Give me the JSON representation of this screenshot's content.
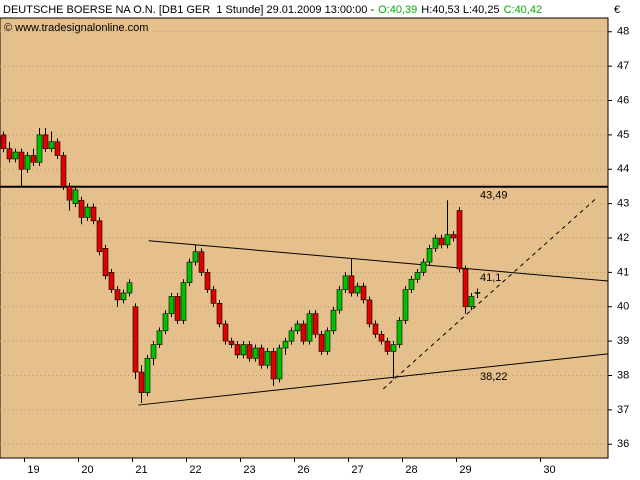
{
  "chart_data": {
    "type": "candlestick",
    "title": "DEUTSCHE BOERSE NA O.N. [DB1 GER  1 Stunde] 29.01.2009 13:00:00 -",
    "open_label": "O:40,39",
    "hl_label": "H:40,53 L:40,25",
    "close_label": "C:40,42",
    "watermark": "© www.tradesignalonline.com",
    "y_unit": "€",
    "up_color": "#00c000",
    "down_color": "#e00000",
    "grid": true,
    "ylim": [
      35.6,
      48.4
    ],
    "yticks": [
      36,
      37,
      38,
      39,
      40,
      41,
      42,
      43,
      44,
      45,
      46,
      47,
      48
    ],
    "categories": [
      null,
      null,
      null,
      null,
      null,
      "19",
      null,
      null,
      null,
      null,
      null,
      null,
      null,
      null,
      "20",
      null,
      null,
      null,
      null,
      null,
      null,
      null,
      null,
      "21",
      null,
      null,
      null,
      null,
      null,
      null,
      null,
      null,
      "22",
      null,
      null,
      null,
      null,
      null,
      null,
      null,
      null,
      "23",
      null,
      null,
      null,
      null,
      null,
      null,
      null,
      null,
      "26",
      null,
      null,
      null,
      null,
      null,
      null,
      null,
      null,
      "27",
      null,
      null,
      null,
      null,
      null,
      null,
      null,
      null,
      "28",
      null,
      null,
      null,
      null,
      null,
      null,
      null,
      null,
      "29",
      null,
      null,
      null,
      null,
      null,
      null,
      null,
      null,
      null,
      null,
      null,
      null,
      null,
      "30",
      null,
      null,
      null,
      null,
      null,
      null,
      null,
      null,
      null
    ],
    "open": [
      45.0,
      44.6,
      44.3,
      44.5,
      44.0,
      44.4,
      44.2,
      45.0,
      44.6,
      44.8,
      44.4,
      43.5,
      43.0,
      43.1,
      42.6,
      42.9,
      42.5,
      41.7,
      41.0,
      40.5,
      40.2,
      40.4,
      40.0,
      38.1,
      37.5,
      38.5,
      38.9,
      39.3,
      39.8,
      40.3,
      39.6,
      40.7,
      41.3,
      41.6,
      41.0,
      40.5,
      40.1,
      39.5,
      39.0,
      38.9,
      38.6,
      38.9,
      38.5,
      38.8,
      38.3,
      38.7,
      37.9,
      38.8,
      39.0,
      39.3,
      39.5,
      39.0,
      39.8,
      39.2,
      38.7,
      39.3,
      39.9,
      40.5,
      40.9,
      40.4,
      40.6,
      40.2,
      39.5,
      39.2,
      39.0,
      38.7,
      38.9,
      39.6,
      40.5,
      40.8,
      41.0,
      41.3,
      41.7,
      42.0,
      41.8,
      42.1,
      42.8,
      41.1,
      40.0,
      40.39,
      null,
      null,
      null,
      null,
      null,
      null,
      null,
      null,
      null,
      null,
      null,
      null,
      null,
      null,
      null,
      null,
      null,
      null,
      null,
      null,
      null
    ],
    "high": [
      45.1,
      44.8,
      44.6,
      44.6,
      44.5,
      44.6,
      45.2,
      45.2,
      45.1,
      44.9,
      44.5,
      43.6,
      43.5,
      43.2,
      43.0,
      43.0,
      42.6,
      41.8,
      41.1,
      40.6,
      40.5,
      40.8,
      40.1,
      38.3,
      38.6,
      39.0,
      39.4,
      39.9,
      40.4,
      40.4,
      40.8,
      41.4,
      41.8,
      41.7,
      41.1,
      40.6,
      40.2,
      39.6,
      39.1,
      39.0,
      39.0,
      39.0,
      38.9,
      38.9,
      38.8,
      38.8,
      38.9,
      39.1,
      39.4,
      39.6,
      39.6,
      39.9,
      39.9,
      39.3,
      39.4,
      40.0,
      40.6,
      41.0,
      41.4,
      40.7,
      40.7,
      40.3,
      39.6,
      39.3,
      39.1,
      39.0,
      39.7,
      40.6,
      40.9,
      41.1,
      41.4,
      41.8,
      42.1,
      42.1,
      43.1,
      42.2,
      42.9,
      41.2,
      40.4,
      40.53,
      null,
      null,
      null,
      null,
      null,
      null,
      null,
      null,
      null,
      null,
      null,
      null,
      null,
      null,
      null,
      null,
      null,
      null,
      null,
      null,
      null
    ],
    "low": [
      44.5,
      44.2,
      44.2,
      43.5,
      43.9,
      44.1,
      44.1,
      44.5,
      44.5,
      44.3,
      43.4,
      42.8,
      42.9,
      42.4,
      42.5,
      42.4,
      41.5,
      40.8,
      40.4,
      40.0,
      40.1,
      40.3,
      37.9,
      37.2,
      37.4,
      38.3,
      38.8,
      39.2,
      39.7,
      39.5,
      39.5,
      40.6,
      41.2,
      40.9,
      40.4,
      40.0,
      39.4,
      38.9,
      38.8,
      38.5,
      38.5,
      38.4,
      38.4,
      38.2,
      38.2,
      37.7,
      37.8,
      38.6,
      38.9,
      39.2,
      38.9,
      38.9,
      39.1,
      38.6,
      38.6,
      39.2,
      39.8,
      40.4,
      40.3,
      40.3,
      40.1,
      39.4,
      39.1,
      38.9,
      38.6,
      37.9,
      38.8,
      39.5,
      40.4,
      40.7,
      40.9,
      41.2,
      41.6,
      41.7,
      41.7,
      41.9,
      41.0,
      39.8,
      39.9,
      40.25,
      null,
      null,
      null,
      null,
      null,
      null,
      null,
      null,
      null,
      null,
      null,
      null,
      null,
      null,
      null,
      null,
      null,
      null,
      null,
      null,
      null
    ],
    "close": [
      44.6,
      44.3,
      44.5,
      44.0,
      44.4,
      44.2,
      45.0,
      44.6,
      44.8,
      44.4,
      43.5,
      43.1,
      43.4,
      42.6,
      42.9,
      42.5,
      41.6,
      40.9,
      40.5,
      40.2,
      40.4,
      40.7,
      38.1,
      37.5,
      38.5,
      38.9,
      39.3,
      39.8,
      40.3,
      39.6,
      40.7,
      41.3,
      41.6,
      41.0,
      40.5,
      40.1,
      39.5,
      39.0,
      38.9,
      38.6,
      38.9,
      38.5,
      38.8,
      38.3,
      38.7,
      37.9,
      38.8,
      39.0,
      39.3,
      39.5,
      39.0,
      39.8,
      39.2,
      38.7,
      39.3,
      39.9,
      40.5,
      40.9,
      40.4,
      40.6,
      40.2,
      39.5,
      39.2,
      39.0,
      38.7,
      38.9,
      39.6,
      40.5,
      40.8,
      41.0,
      41.3,
      41.7,
      42.0,
      41.8,
      42.1,
      42.0,
      41.1,
      40.0,
      40.3,
      40.42,
      null,
      null,
      null,
      null,
      null,
      null,
      null,
      null,
      null,
      null,
      null,
      null,
      null,
      null,
      null,
      null,
      null,
      null,
      null,
      null,
      null
    ],
    "levels": [
      {
        "value": 43.49,
        "label": "43,49"
      },
      {
        "value": 41.1,
        "label": "41,1"
      },
      {
        "value": 38.22,
        "label": "38,22"
      }
    ],
    "trendlines": [
      {
        "x": [
          24.2,
          100.8
        ],
        "y": [
          41.92,
          40.75
        ],
        "dashed": false
      },
      {
        "x": [
          22.5,
          100.8
        ],
        "y": [
          37.14,
          38.63
        ],
        "dashed": false
      },
      {
        "x": [
          63.3,
          98.7
        ],
        "y": [
          37.61,
          43.14
        ],
        "dashed": true
      }
    ]
  }
}
